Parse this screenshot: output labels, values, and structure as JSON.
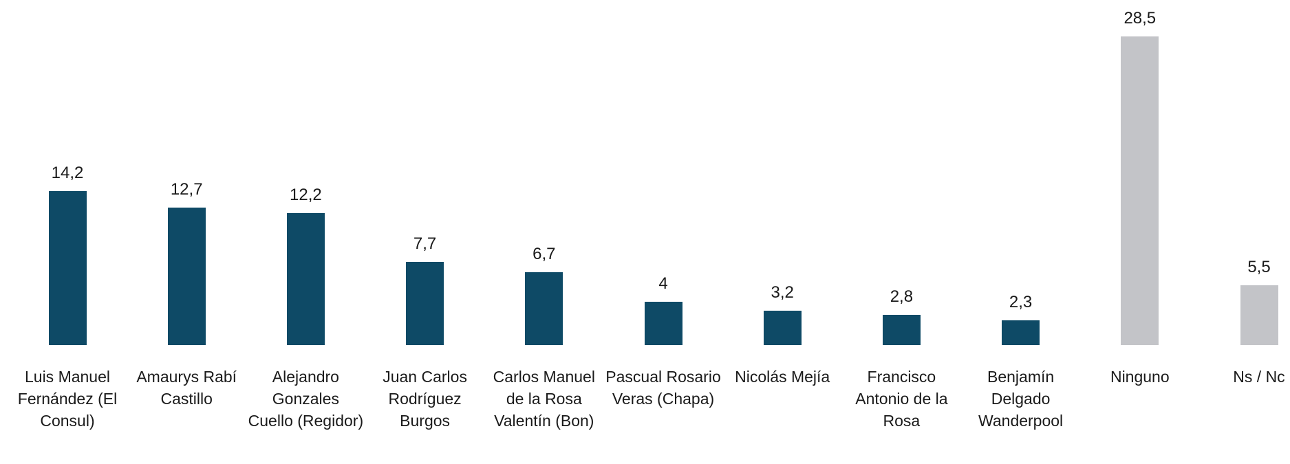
{
  "chart_data": {
    "type": "bar",
    "categories": [
      "Luis Manuel Fernández (El Consul)",
      "Amaurys Rabí Castillo",
      "Alejandro Gonzales Cuello (Regidor)",
      "Juan Carlos Rodríguez Burgos",
      "Carlos Manuel de la Rosa Valentín (Bon)",
      "Pascual Rosario Veras (Chapa)",
      "Nicolás Mejía",
      "Francisco Antonio de la Rosa",
      "Benjamín Delgado Wanderpool",
      "Ninguno",
      "Ns / Nc"
    ],
    "values": [
      14.2,
      12.7,
      12.2,
      7.7,
      6.7,
      4,
      3.2,
      2.8,
      2.3,
      28.5,
      5.5
    ],
    "value_labels": [
      "14,2",
      "12,7",
      "12,2",
      "7,7",
      "6,7",
      "4",
      "3,2",
      "2,8",
      "2,3",
      "28,5",
      "5,5"
    ],
    "colors": [
      "#0e4a66",
      "#0e4a66",
      "#0e4a66",
      "#0e4a66",
      "#0e4a66",
      "#0e4a66",
      "#0e4a66",
      "#0e4a66",
      "#0e4a66",
      "#c3c4c8",
      "#c3c4c8"
    ]
  }
}
